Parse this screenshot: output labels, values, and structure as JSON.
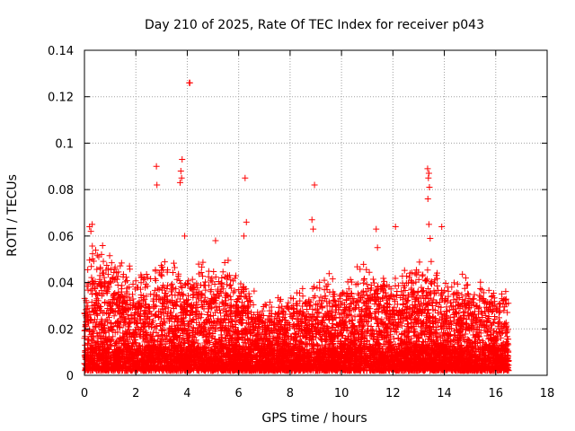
{
  "chart_data": {
    "type": "scatter",
    "title": "Day 210 of 2025, Rate Of TEC Index for receiver p043",
    "xlabel": "GPS time / hours",
    "ylabel": "ROTI / TECUs",
    "xlim": [
      0,
      18
    ],
    "ylim": [
      0,
      0.14
    ],
    "grid": true,
    "marker": "+",
    "color": "#ff0000",
    "x_ticks": [
      "0",
      "2",
      "4",
      "6",
      "8",
      "10",
      "12",
      "14",
      "16",
      "18"
    ],
    "x_tick_values": [
      0,
      2,
      4,
      6,
      8,
      10,
      12,
      14,
      16,
      18
    ],
    "y_ticks": [
      "0",
      "0.02",
      "0.04",
      "0.06",
      "0.08",
      "0.1",
      "0.12",
      "0.14"
    ],
    "y_tick_values": [
      0,
      0.02,
      0.04,
      0.06,
      0.08,
      0.1,
      0.12,
      0.14
    ],
    "data_x_range": [
      0,
      16.5
    ],
    "series": [
      {
        "name": "ROTI",
        "outliers": [
          {
            "x": 2.8,
            "y": 0.09
          },
          {
            "x": 2.82,
            "y": 0.082
          },
          {
            "x": 3.75,
            "y": 0.088
          },
          {
            "x": 3.8,
            "y": 0.093
          },
          {
            "x": 3.78,
            "y": 0.085
          },
          {
            "x": 3.72,
            "y": 0.083
          },
          {
            "x": 4.08,
            "y": 0.126
          },
          {
            "x": 4.1,
            "y": 0.126
          },
          {
            "x": 6.25,
            "y": 0.085
          },
          {
            "x": 6.3,
            "y": 0.066
          },
          {
            "x": 8.95,
            "y": 0.082
          },
          {
            "x": 8.85,
            "y": 0.067
          },
          {
            "x": 8.9,
            "y": 0.063
          },
          {
            "x": 13.35,
            "y": 0.089
          },
          {
            "x": 13.4,
            "y": 0.087
          },
          {
            "x": 13.38,
            "y": 0.085
          },
          {
            "x": 13.42,
            "y": 0.081
          },
          {
            "x": 13.36,
            "y": 0.076
          },
          {
            "x": 13.4,
            "y": 0.065
          },
          {
            "x": 13.45,
            "y": 0.059
          },
          {
            "x": 13.9,
            "y": 0.064
          },
          {
            "x": 11.35,
            "y": 0.063
          },
          {
            "x": 11.4,
            "y": 0.055
          },
          {
            "x": 12.1,
            "y": 0.064
          },
          {
            "x": 0.2,
            "y": 0.064
          },
          {
            "x": 0.25,
            "y": 0.062
          },
          {
            "x": 0.3,
            "y": 0.065
          },
          {
            "x": 3.9,
            "y": 0.06
          },
          {
            "x": 6.2,
            "y": 0.06
          },
          {
            "x": 5.1,
            "y": 0.058
          }
        ],
        "bulk_envelope": [
          {
            "x": 0,
            "y": 0.03
          },
          {
            "x": 0.3,
            "y": 0.05
          },
          {
            "x": 1,
            "y": 0.045
          },
          {
            "x": 2,
            "y": 0.04
          },
          {
            "x": 3,
            "y": 0.045
          },
          {
            "x": 4,
            "y": 0.04
          },
          {
            "x": 5,
            "y": 0.04
          },
          {
            "x": 6,
            "y": 0.04
          },
          {
            "x": 7,
            "y": 0.025
          },
          {
            "x": 8,
            "y": 0.03
          },
          {
            "x": 9,
            "y": 0.035
          },
          {
            "x": 10,
            "y": 0.035
          },
          {
            "x": 11,
            "y": 0.04
          },
          {
            "x": 12,
            "y": 0.035
          },
          {
            "x": 13,
            "y": 0.04
          },
          {
            "x": 14,
            "y": 0.04
          },
          {
            "x": 15,
            "y": 0.035
          },
          {
            "x": 16,
            "y": 0.03
          },
          {
            "x": 16.5,
            "y": 0.03
          }
        ]
      }
    ]
  }
}
